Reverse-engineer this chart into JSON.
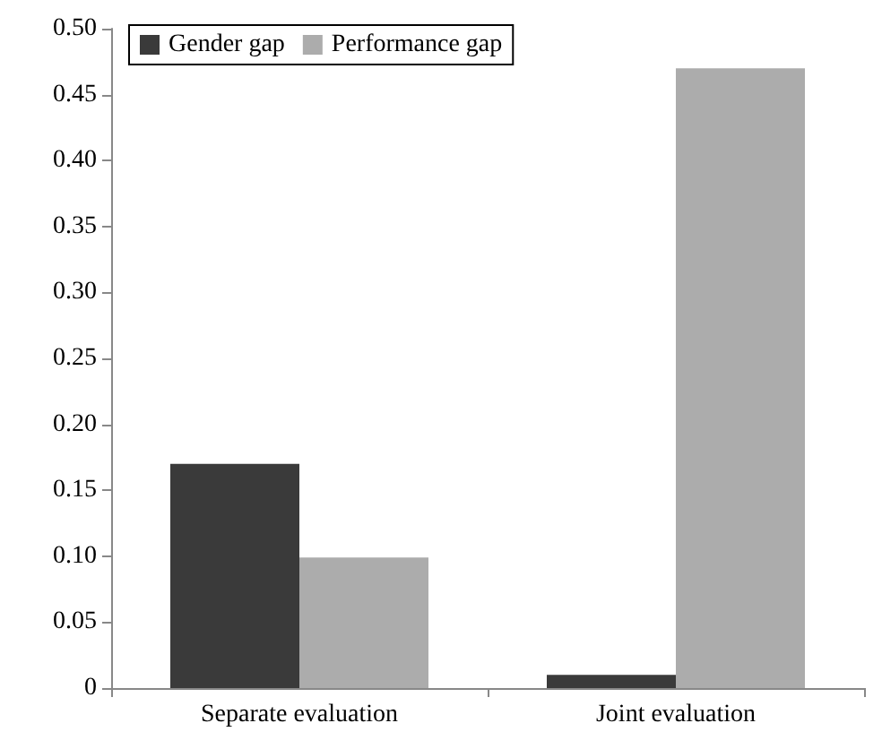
{
  "chart_data": {
    "type": "bar",
    "categories": [
      "Separate evaluation",
      "Joint evaluation"
    ],
    "series": [
      {
        "name": "Gender gap",
        "color": "#3a3a3a",
        "values": [
          0.17,
          0.01
        ]
      },
      {
        "name": "Performance gap",
        "color": "#acacac",
        "values": [
          0.099,
          0.47
        ]
      }
    ],
    "ylim": [
      0,
      0.5
    ],
    "yticks": [
      0,
      0.05,
      {
        "value": 0.1,
        "label": "0.10"
      },
      0.15,
      {
        "value": 0.2,
        "label": "0.20"
      },
      0.25,
      {
        "value": 0.3,
        "label": "0.30"
      },
      0.35,
      {
        "value": 0.4,
        "label": "0.40"
      },
      0.45,
      {
        "value": 0.5,
        "label": "0.50"
      }
    ],
    "grid": false,
    "legend": "top left"
  }
}
